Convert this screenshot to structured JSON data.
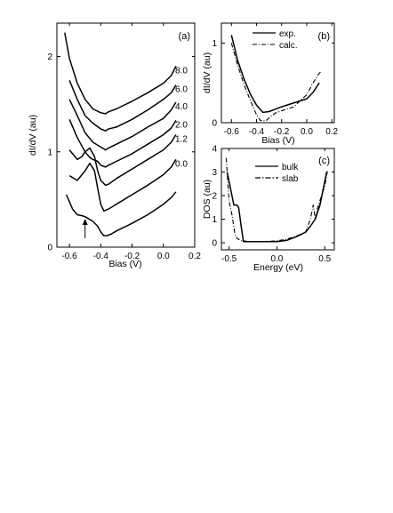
{
  "chart_data": [
    {
      "panel": "(a)",
      "type": "line",
      "xlabel": "Bias (V)",
      "ylabel": "dI/dV (au)",
      "xlim": [
        -0.68,
        0.2
      ],
      "ylim": [
        0,
        2.35
      ],
      "xticks": [
        "-0.6",
        "-0.4",
        "-0.2",
        "0.0",
        "0.2"
      ],
      "xtick_values": [
        -0.6,
        -0.4,
        -0.2,
        0.0,
        0.2
      ],
      "yticks": [
        "0",
        "1",
        "2"
      ],
      "ytick_values": [
        0,
        1,
        2
      ],
      "arrow_x": -0.5,
      "series": [
        {
          "name": "8.0",
          "x": [
            -0.63,
            -0.6,
            -0.55,
            -0.5,
            -0.45,
            -0.4,
            -0.37,
            -0.35,
            -0.3,
            -0.2,
            -0.1,
            0.0,
            0.05,
            0.08
          ],
          "y": [
            2.25,
            1.98,
            1.72,
            1.55,
            1.45,
            1.41,
            1.4,
            1.42,
            1.45,
            1.53,
            1.62,
            1.72,
            1.8,
            1.9
          ]
        },
        {
          "name": "6.0",
          "x": [
            -0.6,
            -0.55,
            -0.5,
            -0.45,
            -0.4,
            -0.37,
            -0.35,
            -0.3,
            -0.2,
            -0.1,
            0.0,
            0.05,
            0.08
          ],
          "y": [
            1.75,
            1.55,
            1.38,
            1.3,
            1.24,
            1.22,
            1.24,
            1.26,
            1.34,
            1.44,
            1.55,
            1.62,
            1.7
          ]
        },
        {
          "name": "4.0",
          "x": [
            -0.6,
            -0.55,
            -0.5,
            -0.45,
            -0.4,
            -0.37,
            -0.35,
            -0.3,
            -0.2,
            -0.1,
            0.0,
            0.05,
            0.08
          ],
          "y": [
            1.55,
            1.38,
            1.2,
            1.1,
            1.05,
            1.02,
            1.04,
            1.08,
            1.16,
            1.26,
            1.35,
            1.44,
            1.52
          ]
        },
        {
          "name": "2.0",
          "x": [
            -0.6,
            -0.55,
            -0.5,
            -0.47,
            -0.45,
            -0.42,
            -0.4,
            -0.37,
            -0.35,
            -0.3,
            -0.2,
            -0.1,
            0.0,
            0.05,
            0.08
          ],
          "y": [
            1.34,
            1.15,
            1.0,
            0.94,
            0.92,
            0.9,
            0.86,
            0.84,
            0.86,
            0.9,
            0.98,
            1.08,
            1.18,
            1.25,
            1.33
          ]
        },
        {
          "name": "1.2",
          "x": [
            -0.6,
            -0.55,
            -0.52,
            -0.5,
            -0.47,
            -0.44,
            -0.42,
            -0.4,
            -0.37,
            -0.35,
            -0.3,
            -0.2,
            -0.1,
            0.0,
            0.05,
            0.08
          ],
          "y": [
            1.02,
            0.92,
            0.95,
            1.0,
            1.04,
            0.95,
            0.8,
            0.7,
            0.65,
            0.66,
            0.72,
            0.82,
            0.92,
            1.02,
            1.1,
            1.18
          ]
        },
        {
          "name": "0.0",
          "x": [
            -0.6,
            -0.55,
            -0.5,
            -0.47,
            -0.44,
            -0.42,
            -0.4,
            -0.38,
            -0.35,
            -0.3,
            -0.2,
            -0.1,
            0.0,
            0.05,
            0.08
          ],
          "y": [
            0.75,
            0.7,
            0.8,
            0.88,
            0.8,
            0.62,
            0.45,
            0.38,
            0.4,
            0.45,
            0.55,
            0.65,
            0.76,
            0.84,
            0.92
          ]
        },
        {
          "name": "",
          "x": [
            -0.62,
            -0.58,
            -0.55,
            -0.52,
            -0.5,
            -0.48,
            -0.45,
            -0.42,
            -0.4,
            -0.38,
            -0.36,
            -0.33,
            -0.3,
            -0.2,
            -0.1,
            0.0,
            0.05,
            0.08
          ],
          "y": [
            0.55,
            0.4,
            0.34,
            0.33,
            0.32,
            0.3,
            0.27,
            0.22,
            0.16,
            0.12,
            0.12,
            0.14,
            0.17,
            0.25,
            0.34,
            0.45,
            0.52,
            0.58
          ]
        }
      ]
    },
    {
      "panel": "(b)",
      "type": "line",
      "xlabel": "Bias (V)",
      "ylabel": "dI/dV (au)",
      "xlim": [
        -0.68,
        0.22
      ],
      "ylim": [
        0,
        1.25
      ],
      "xticks": [
        "-0.6",
        "-0.4",
        "-0.2",
        "0.0",
        "0.2"
      ],
      "xtick_values": [
        -0.6,
        -0.4,
        -0.2,
        0.0,
        0.2
      ],
      "yticks": [
        "0",
        "1"
      ],
      "ytick_values": [
        0,
        1
      ],
      "legend_position": "top-right",
      "series": [
        {
          "name": "exp.",
          "style": "solid",
          "x": [
            -0.6,
            -0.55,
            -0.5,
            -0.45,
            -0.4,
            -0.35,
            -0.3,
            -0.25,
            -0.2,
            -0.1,
            0.0,
            0.05,
            0.1
          ],
          "y": [
            1.1,
            0.78,
            0.55,
            0.36,
            0.22,
            0.13,
            0.14,
            0.17,
            0.2,
            0.25,
            0.3,
            0.38,
            0.5
          ]
        },
        {
          "name": "calc.",
          "style": "dashdot",
          "x": [
            -0.6,
            -0.55,
            -0.5,
            -0.45,
            -0.4,
            -0.37,
            -0.35,
            -0.32,
            -0.3,
            -0.25,
            -0.2,
            -0.1,
            -0.05,
            0.0,
            0.05,
            0.1,
            0.12
          ],
          "y": [
            1.0,
            0.72,
            0.48,
            0.28,
            0.1,
            0.03,
            0.02,
            0.03,
            0.06,
            0.12,
            0.15,
            0.2,
            0.28,
            0.35,
            0.5,
            0.62,
            0.65
          ]
        }
      ]
    },
    {
      "panel": "(c)",
      "type": "line",
      "xlabel": "Energy (eV)",
      "ylabel": "DOS (au)",
      "xlim": [
        -0.58,
        0.6
      ],
      "ylim": [
        -0.3,
        4.0
      ],
      "xticks": [
        "-0.5",
        "0.0",
        "0.5"
      ],
      "xtick_values": [
        -0.5,
        0.0,
        0.5
      ],
      "yticks": [
        "0",
        "1",
        "2",
        "3",
        "4"
      ],
      "ytick_values": [
        0,
        1,
        2,
        3,
        4
      ],
      "legend_position": "top-right",
      "series": [
        {
          "name": "bulk",
          "style": "solid",
          "x": [
            -0.52,
            -0.48,
            -0.45,
            -0.42,
            -0.4,
            -0.37,
            -0.35,
            -0.3,
            -0.2,
            -0.1,
            0.0,
            0.1,
            0.2,
            0.25,
            0.3,
            0.35,
            0.4,
            0.45,
            0.5,
            0.52
          ],
          "y": [
            3.0,
            2.2,
            1.6,
            1.6,
            1.5,
            0.6,
            0.05,
            0.05,
            0.05,
            0.05,
            0.05,
            0.1,
            0.25,
            0.35,
            0.45,
            0.7,
            1.0,
            1.6,
            2.6,
            3.0
          ]
        },
        {
          "name": "slab",
          "style": "dashdot",
          "x": [
            -0.53,
            -0.5,
            -0.47,
            -0.44,
            -0.42,
            -0.4,
            -0.38,
            -0.35,
            -0.3,
            -0.2,
            -0.1,
            0.0,
            0.1,
            0.2,
            0.3,
            0.35,
            0.38,
            0.4,
            0.42,
            0.45,
            0.5,
            0.53
          ],
          "y": [
            3.6,
            1.8,
            1.2,
            0.4,
            0.2,
            0.15,
            0.1,
            0.08,
            0.05,
            0.05,
            0.06,
            0.08,
            0.15,
            0.28,
            0.45,
            1.0,
            1.6,
            1.0,
            1.4,
            1.8,
            2.4,
            3.1
          ]
        }
      ]
    }
  ]
}
